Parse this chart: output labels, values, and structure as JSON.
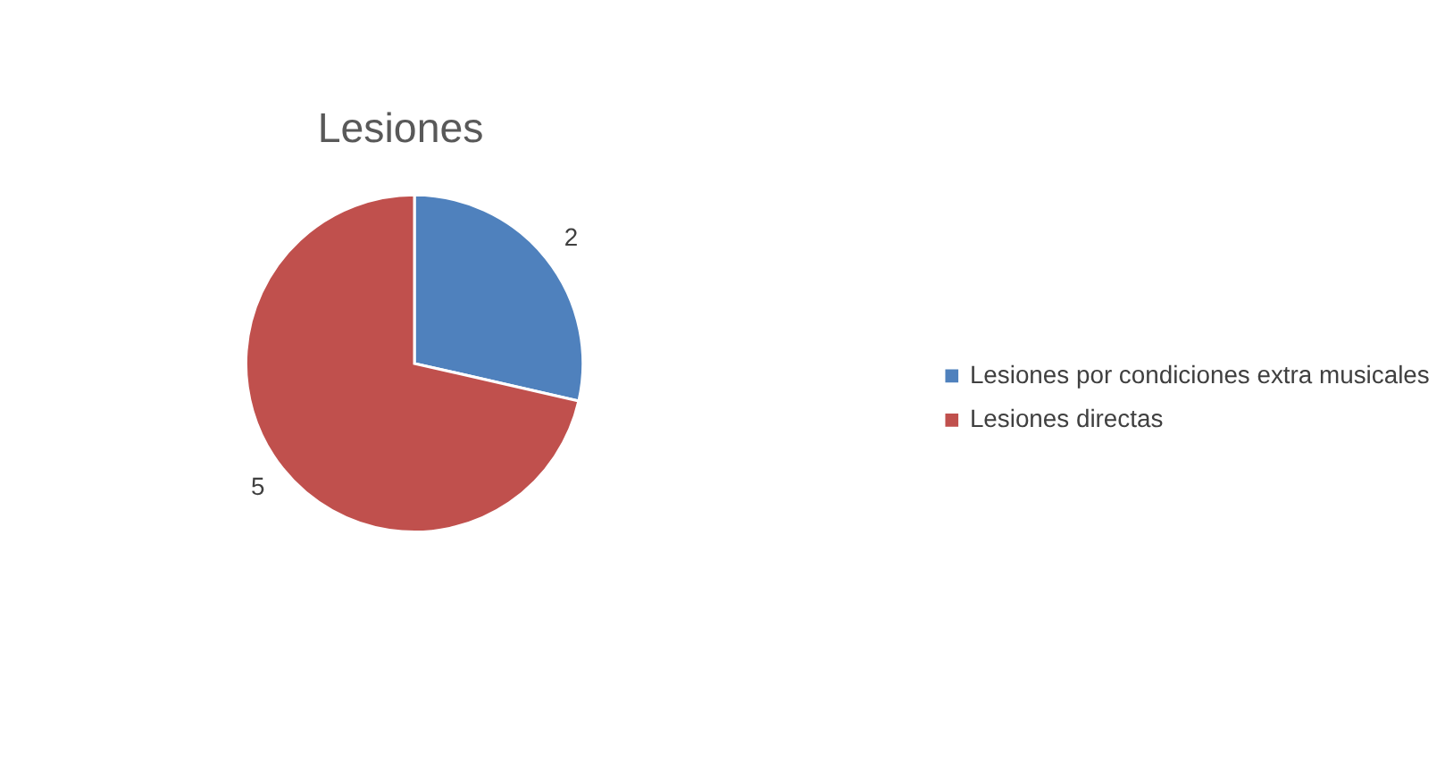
{
  "chart_data": {
    "type": "pie",
    "title": "Lesiones",
    "categories": [
      "Lesiones por condiciones extra musicales",
      "Lesiones directas"
    ],
    "values": [
      2,
      5
    ],
    "colors": [
      "#4f81bd",
      "#c0504d"
    ],
    "data_labels": true,
    "legend": "right"
  }
}
